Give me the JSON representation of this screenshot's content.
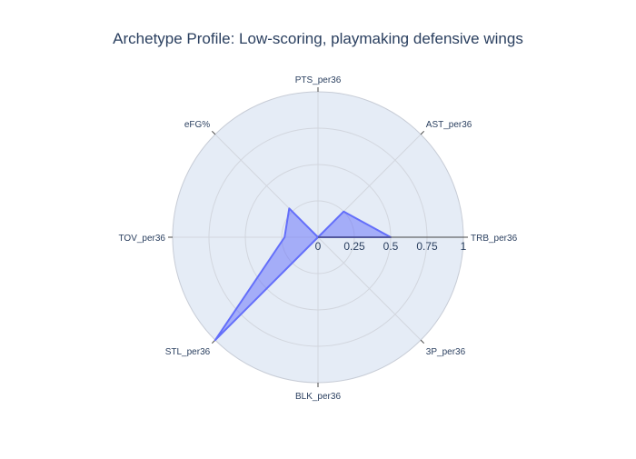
{
  "chart_data": {
    "type": "radar",
    "title": "Archetype Profile: Low-scoring, playmaking defensive wings",
    "axes": [
      "PTS_per36",
      "AST_per36",
      "TRB_per36",
      "3P_per36",
      "BLK_per36",
      "STL_per36",
      "TOV_per36",
      "eFG%"
    ],
    "radial_ticks": [
      0,
      0.25,
      0.5,
      0.75,
      1
    ],
    "radial_range": [
      0,
      1
    ],
    "series": [
      {
        "values": [
          0.0,
          0.25,
          0.5,
          0.0,
          0.0,
          1.0,
          0.23,
          0.28
        ]
      }
    ],
    "grid": true,
    "legend": "none",
    "colors": {
      "fill": "rgba(99,110,250,0.5)",
      "line": "#636efa",
      "plot_bg": "#e5ecf6",
      "grid": "#ffffff",
      "text": "#2a3f5f"
    }
  }
}
